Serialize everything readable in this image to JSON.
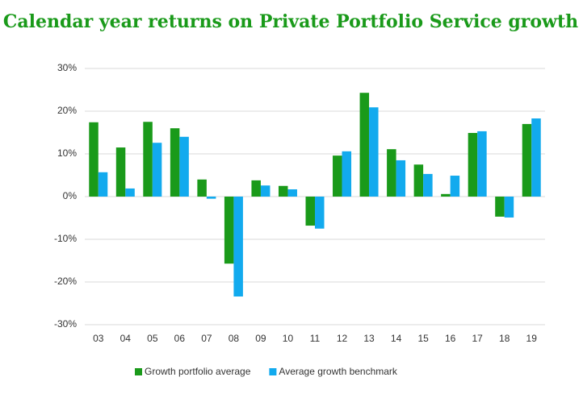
{
  "chart_data": {
    "type": "bar",
    "title": "Calendar year returns on Private Portfolio Service growth",
    "categories": [
      "03",
      "04",
      "05",
      "06",
      "07",
      "08",
      "09",
      "10",
      "11",
      "12",
      "13",
      "14",
      "15",
      "16",
      "17",
      "18",
      "19"
    ],
    "series": [
      {
        "name": "Growth portfolio average",
        "color": "#1a9a1a",
        "values": [
          17.4,
          11.5,
          17.5,
          16,
          4,
          -15.7,
          3.8,
          2.5,
          -6.8,
          9.6,
          24.3,
          11.1,
          7.5,
          0.6,
          14.9,
          -4.7,
          17
        ]
      },
      {
        "name": "Average growth benchmark",
        "color": "#12aaee",
        "values": [
          5.7,
          1.9,
          12.6,
          14,
          -0.5,
          -23.4,
          2.6,
          1.7,
          -7.5,
          10.6,
          20.9,
          8.5,
          5.3,
          4.9,
          15.3,
          -4.9,
          18.3
        ]
      }
    ],
    "ylim": [
      -30,
      30
    ],
    "yticks": [
      {
        "value": -30,
        "label": "-30%"
      },
      {
        "value": -20,
        "label": "-20%"
      },
      {
        "value": -10,
        "label": "-10%"
      },
      {
        "value": 0,
        "label": "0%"
      },
      {
        "value": 10,
        "label": "10%"
      },
      {
        "value": 20,
        "label": "20%"
      },
      {
        "value": 30,
        "label": "30%"
      }
    ],
    "grid": true,
    "legend": "bottom"
  }
}
